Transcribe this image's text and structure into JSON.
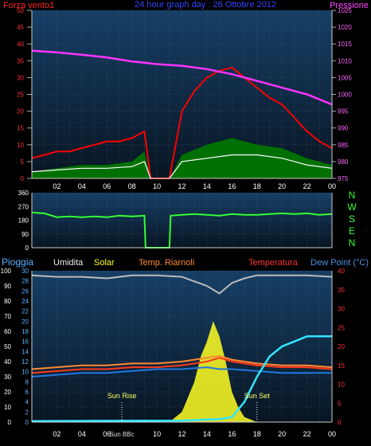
{
  "header": {
    "title": "24 hour graph day : 26 Ottobre 2012",
    "left_label": "Forza vento1",
    "right_label": "Pressione"
  },
  "panel3_headers": {
    "rain": "Pioggia",
    "humidity": "Umidita",
    "solar": "Solar",
    "temp_riarnoli": "Temp. Riarnoli",
    "temperature": "Temperatura",
    "dewpoint": "Dew Point (°C)"
  },
  "annotations": {
    "sun_rise": "Sun Rise",
    "sun_set": "Sun Set",
    "sun_bbc": "Sun BBc"
  },
  "colors": {
    "background": "#000000",
    "plot_top": "#143a5c",
    "plot_bottom": "#0a1524",
    "grid": "#6a7d90",
    "pressure": "#ff33ff",
    "wind_speed": "#ff0000",
    "wind_gust_fill": "#007a00",
    "wind_avg": "#ffffff",
    "wind_dir": "#33ff33",
    "humidity": "#bbbbbb",
    "temperature": "#ff3a1a",
    "temp_riarnoli": "#ff8833",
    "dewpoint": "#2277dd",
    "rain": "#33e5ff",
    "solar": "#ffff22",
    "axis_left": "#ff3333",
    "axis_right": "#ff66ff",
    "axis_dir": "#33ff33",
    "axis_rain": "#5ab0ff",
    "axis_temp": "#ff3333"
  },
  "chart_data": [
    {
      "type": "area",
      "x_ticks": [
        "02",
        "04",
        "06",
        "08",
        "10",
        "12",
        "14",
        "16",
        "18",
        "20",
        "22",
        "00"
      ],
      "ylim_left": [
        0,
        50
      ],
      "yticks_left": [
        "0",
        "5",
        "10",
        "15",
        "20",
        "25",
        "30",
        "35",
        "40",
        "45",
        "50"
      ],
      "ylim_right": [
        975,
        1025
      ],
      "yticks_right": [
        "975",
        "980",
        "985",
        "990",
        "995",
        "1000",
        "1005",
        "1010",
        "1015",
        "1020",
        "1025"
      ],
      "series": [
        {
          "name": "Forza vento1",
          "x": [
            0,
            1,
            2,
            3,
            4,
            5,
            6,
            7,
            8,
            9,
            9.5,
            10,
            11,
            12,
            13,
            14,
            15,
            16,
            17,
            18,
            19,
            20,
            21,
            22,
            23,
            24
          ],
          "values": [
            6,
            7,
            8,
            8,
            9,
            10,
            11,
            11,
            12,
            14,
            0,
            0,
            0,
            20,
            26,
            30,
            32,
            33,
            30,
            27,
            24,
            22,
            18,
            14,
            11,
            9
          ]
        },
        {
          "name": "Pressione",
          "x": [
            0,
            2,
            4,
            6,
            8,
            10,
            12,
            14,
            16,
            18,
            20,
            22,
            24
          ],
          "values": [
            1013,
            1012.5,
            1011.8,
            1011,
            1009.8,
            1009,
            1008.5,
            1007.5,
            1006,
            1004,
            1002,
            1000,
            997
          ]
        }
      ],
      "gust_series": {
        "x": [
          0,
          2,
          4,
          6,
          8,
          9,
          9.5,
          11,
          12,
          14,
          16,
          18,
          20,
          22,
          24
        ],
        "values": [
          2,
          3,
          4,
          4,
          5,
          8,
          0,
          0,
          7,
          10,
          12,
          10,
          9,
          6,
          4
        ]
      },
      "average_series": {
        "x": [
          0,
          2,
          4,
          6,
          8,
          9,
          9.5,
          11,
          12,
          14,
          16,
          18,
          20,
          22,
          24
        ],
        "values": [
          2,
          2.5,
          3,
          3,
          3.5,
          5,
          0,
          0,
          5,
          6,
          7,
          7,
          6,
          4,
          3
        ]
      }
    },
    {
      "type": "line",
      "ylim": [
        0,
        360
      ],
      "yticks": [
        "0",
        "90",
        "180",
        "270",
        "360"
      ],
      "direction_labels": [
        "N",
        "W",
        "S",
        "E",
        "N"
      ],
      "series": [
        {
          "name": "direction",
          "x": [
            0,
            1,
            2,
            3,
            4,
            5,
            6,
            7,
            8,
            9,
            9.1,
            11,
            11.1,
            12,
            13,
            14,
            15,
            16,
            17,
            18,
            19,
            20,
            21,
            22,
            23,
            24
          ],
          "values": [
            230,
            225,
            200,
            205,
            200,
            205,
            200,
            210,
            205,
            210,
            0,
            0,
            210,
            215,
            220,
            215,
            210,
            220,
            215,
            215,
            220,
            225,
            220,
            225,
            215,
            220
          ]
        }
      ]
    },
    {
      "type": "line",
      "ylim_humidity": [
        0,
        100
      ],
      "yticks_humidity": [
        "0",
        "10",
        "20",
        "30",
        "40",
        "50",
        "60",
        "70",
        "80",
        "90",
        "100"
      ],
      "ylim_rain": [
        0,
        30
      ],
      "yticks_rain": [
        "0",
        "2",
        "4",
        "6",
        "8",
        "10",
        "12",
        "14",
        "16",
        "18",
        "20",
        "22",
        "24",
        "26",
        "28",
        "30"
      ],
      "ylim_temp": [
        0,
        40
      ],
      "yticks_temp": [
        "0",
        "5",
        "10",
        "15",
        "20",
        "25",
        "30",
        "35",
        "40"
      ],
      "series": [
        {
          "name": "Umidita",
          "x": [
            0,
            2,
            4,
            6,
            8,
            10,
            12,
            13,
            14,
            15,
            16,
            17,
            18,
            20,
            22,
            24
          ],
          "values": [
            97,
            96,
            96,
            95,
            97,
            97,
            96,
            93,
            90,
            85,
            92,
            95,
            97,
            97,
            97,
            96
          ]
        },
        {
          "name": "Temperatura",
          "x": [
            0,
            2,
            4,
            6,
            8,
            10,
            12,
            14,
            15,
            16,
            18,
            20,
            22,
            24
          ],
          "values": [
            13,
            13.5,
            14,
            14,
            14.5,
            14.5,
            15,
            16,
            17,
            16,
            15,
            14.5,
            14.5,
            14
          ]
        },
        {
          "name": "Temp. Riarnoli",
          "x": [
            0,
            2,
            4,
            6,
            8,
            10,
            12,
            14,
            15,
            16,
            18,
            20,
            22,
            24
          ],
          "values": [
            14,
            14.5,
            15,
            15,
            15.5,
            15.5,
            16,
            17,
            17.5,
            16.5,
            15.5,
            15,
            15,
            14.5
          ]
        },
        {
          "name": "Dew Point (°C)",
          "x": [
            0,
            2,
            4,
            6,
            8,
            10,
            12,
            14,
            15,
            16,
            18,
            20,
            22,
            24
          ],
          "values": [
            12,
            12.5,
            13,
            13,
            13.5,
            14,
            14,
            14.5,
            14,
            14,
            13.5,
            13,
            13,
            13
          ]
        },
        {
          "name": "Pioggia",
          "x": [
            0,
            12,
            14,
            15,
            16,
            17,
            18,
            19,
            20,
            21,
            22,
            24
          ],
          "values": [
            0.2,
            0.3,
            0.5,
            0.6,
            1,
            4,
            9,
            13,
            15,
            16,
            17,
            17
          ]
        },
        {
          "name": "Solar",
          "x": [
            11,
            12,
            12.5,
            13,
            13.5,
            14,
            14.5,
            15,
            15.5,
            16,
            16.5,
            17,
            18
          ],
          "values": [
            0,
            2,
            5,
            8,
            13,
            16,
            20,
            17,
            12,
            6,
            3,
            1,
            0
          ]
        }
      ],
      "sun_rise_hour": 7.2,
      "sun_set_hour": 18.0
    }
  ]
}
